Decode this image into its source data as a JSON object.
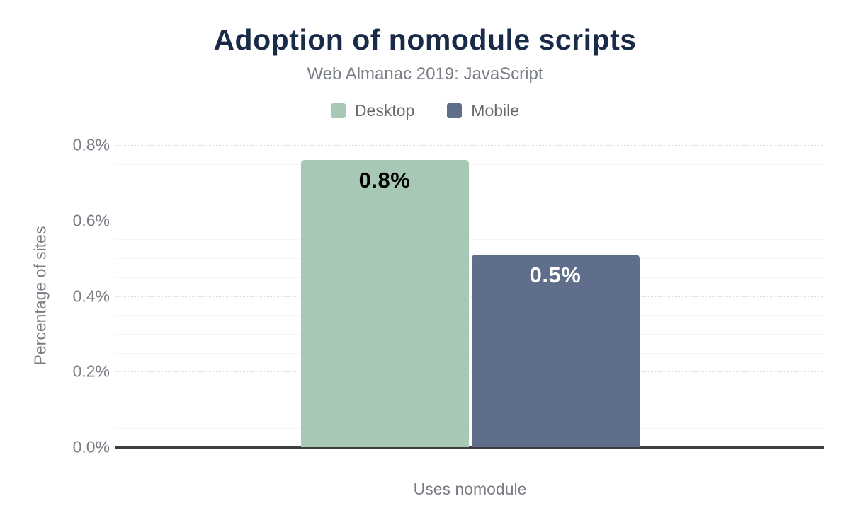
{
  "chart_data": {
    "type": "bar",
    "title": "Adoption of nomodule scripts",
    "subtitle": "Web Almanac 2019: JavaScript",
    "categories": [
      "Uses nomodule"
    ],
    "series": [
      {
        "name": "Desktop",
        "values": [
          0.76
        ],
        "data_label": "0.8%",
        "color": "#a6c8b5",
        "data_label_color": "#000000"
      },
      {
        "name": "Mobile",
        "values": [
          0.51
        ],
        "data_label": "0.5%",
        "color": "#5f6e8a",
        "data_label_color": "#ffffff"
      }
    ],
    "xlabel": "",
    "ylabel": "Percentage of sites",
    "ylim": [
      0,
      0.8
    ],
    "yticks": [
      {
        "value": 0.0,
        "label": "0.0%"
      },
      {
        "value": 0.2,
        "label": "0.2%"
      },
      {
        "value": 0.4,
        "label": "0.4%"
      },
      {
        "value": 0.6,
        "label": "0.6%"
      },
      {
        "value": 0.8,
        "label": "0.8%"
      }
    ],
    "grid": {
      "orientation": "horizontal",
      "minor_step": 0.05,
      "major_step": 0.2
    },
    "legend_position": "top",
    "colors": {
      "title": "#1a2b49",
      "subtitle": "#7a7f87",
      "axis_text": "#797d84",
      "axis_line": "#3b3d40"
    }
  }
}
